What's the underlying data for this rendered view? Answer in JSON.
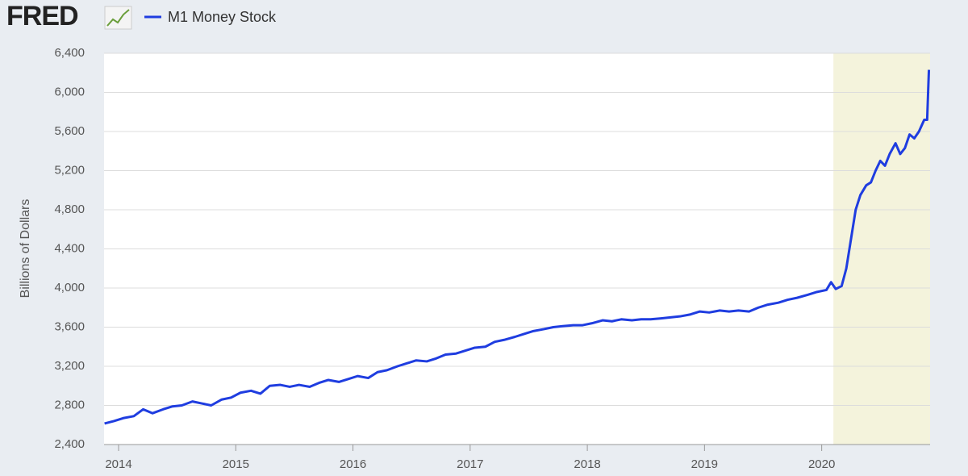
{
  "chart_data": {
    "type": "line",
    "source": "FRED",
    "y_label": "Billions of Dollars",
    "x": [
      2013.88,
      2013.96,
      2014.04,
      2014.13,
      2014.21,
      2014.29,
      2014.38,
      2014.46,
      2014.54,
      2014.63,
      2014.71,
      2014.79,
      2014.88,
      2014.96,
      2015.04,
      2015.13,
      2015.21,
      2015.29,
      2015.38,
      2015.46,
      2015.54,
      2015.63,
      2015.71,
      2015.79,
      2015.88,
      2015.96,
      2016.04,
      2016.13,
      2016.21,
      2016.29,
      2016.38,
      2016.46,
      2016.54,
      2016.63,
      2016.71,
      2016.79,
      2016.88,
      2016.96,
      2017.04,
      2017.13,
      2017.21,
      2017.29,
      2017.38,
      2017.46,
      2017.54,
      2017.63,
      2017.71,
      2017.79,
      2017.88,
      2017.96,
      2018.04,
      2018.13,
      2018.21,
      2018.29,
      2018.38,
      2018.46,
      2018.54,
      2018.63,
      2018.71,
      2018.79,
      2018.88,
      2018.96,
      2019.04,
      2019.13,
      2019.21,
      2019.29,
      2019.38,
      2019.46,
      2019.54,
      2019.63,
      2019.71,
      2019.79,
      2019.88,
      2019.96,
      2020.04,
      2020.08,
      2020.12,
      2020.17,
      2020.21,
      2020.25,
      2020.29,
      2020.33,
      2020.38,
      2020.42,
      2020.46,
      2020.5,
      2020.54,
      2020.58,
      2020.63,
      2020.67,
      2020.71,
      2020.75,
      2020.79,
      2020.83,
      2020.875,
      2020.9,
      2020.915
    ],
    "series": [
      {
        "name": "M1 Money Stock",
        "color": "#1f3de0",
        "values": [
          2615,
          2640,
          2670,
          2690,
          2760,
          2720,
          2760,
          2790,
          2800,
          2840,
          2820,
          2800,
          2860,
          2880,
          2930,
          2950,
          2920,
          3000,
          3010,
          2990,
          3010,
          2990,
          3030,
          3060,
          3040,
          3070,
          3100,
          3080,
          3140,
          3160,
          3200,
          3230,
          3260,
          3250,
          3280,
          3320,
          3330,
          3360,
          3390,
          3400,
          3450,
          3470,
          3500,
          3530,
          3560,
          3580,
          3600,
          3610,
          3620,
          3620,
          3640,
          3670,
          3660,
          3680,
          3670,
          3680,
          3680,
          3690,
          3700,
          3710,
          3730,
          3760,
          3750,
          3770,
          3760,
          3770,
          3760,
          3800,
          3830,
          3850,
          3880,
          3900,
          3930,
          3960,
          3980,
          4060,
          3990,
          4020,
          4200,
          4500,
          4800,
          4950,
          5050,
          5080,
          5200,
          5300,
          5250,
          5370,
          5480,
          5370,
          5430,
          5570,
          5530,
          5600,
          5720,
          5720,
          6230
        ]
      }
    ],
    "recession": [
      2020.1,
      2020.925
    ],
    "xlim": [
      2013.876,
      2020.925
    ],
    "xticks": [
      2014,
      2015,
      2016,
      2017,
      2018,
      2019,
      2020
    ],
    "ylim": [
      2400,
      6400
    ],
    "yticks": [
      {
        "value": 2400,
        "label": "2,400"
      },
      {
        "value": 2800,
        "label": "2,800"
      },
      {
        "value": 3200,
        "label": "3,200"
      },
      {
        "value": 3600,
        "label": "3,600"
      },
      {
        "value": 4000,
        "label": "4,000"
      },
      {
        "value": 4400,
        "label": "4,400"
      },
      {
        "value": 4800,
        "label": "4,800"
      },
      {
        "value": 5200,
        "label": "5,200"
      },
      {
        "value": 5600,
        "label": "5,600"
      },
      {
        "value": 6000,
        "label": "6,000"
      },
      {
        "value": 6400,
        "label": "6,400"
      }
    ],
    "grid": true
  }
}
